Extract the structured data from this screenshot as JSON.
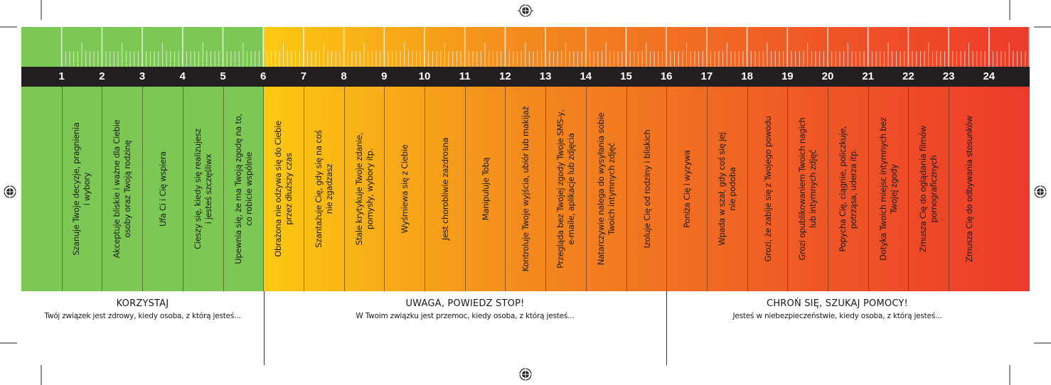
{
  "scale": {
    "numbers": [
      "1",
      "2",
      "3",
      "4",
      "5",
      "6",
      "7",
      "8",
      "9",
      "10",
      "11",
      "12",
      "13",
      "14",
      "15",
      "16",
      "17",
      "18",
      "19",
      "20",
      "21",
      "22",
      "23",
      "24"
    ],
    "colors": {
      "green": "#7dc855",
      "yellow": "#fcc913",
      "orange": "#f38a1e",
      "red_orange": "#ef5a26",
      "red": "#ed3b2a",
      "number_bar": "#231f20"
    }
  },
  "behaviors": [
    "Szanuje Twoje decyzje, pragnienia\ni wybory",
    "Akceptuje bliskie i ważne dla Ciebie\nosoby oraz Twoją rodzinę",
    "Ufa Ci i Cię wspiera",
    "Cieszy się, kiedy się realizujesz\ni jesteś szczęśliwx",
    "Upewnia się, że ma Twoją zgodę na to,\nco robicie wspólnie",
    "Obrażona nie odzywa się do Ciebie\nprzez dłuższy czas",
    "Szantażuje Cię, gdy się na coś\nnie zgadzasz",
    "Stale krytykuje Twoje zdanie,\npomysły, wybory itp.",
    "Wyśmiewa się z Ciebie",
    "Jest chorobliwie zazdrosna",
    "Manipuluje Tobą",
    "Kontroluje Twoje wyjścia, ubiór lub makijaż",
    "Przegląda bez Twojej zgody Twoje SMS-y,\ne-maile, aplikacje lub zdjęcia",
    "Natarczywie nalega do wysyłania sobie\nTwoich intymnych zdjęć",
    "Izoluje Cię od rodziny i bliskich",
    "Poniża Cię i wyzywa",
    "Wpada w szał, gdy coś się jej\nnie podoba",
    "Grozi, że zabije się z Twojego powodu",
    "Grozi opublikowaniem Twoich nagich\nlub intymnych zdjęć",
    "Popycha Cię, ciągnie, policzkuje,\npotrząsa, uderza itp.",
    "Dotyka Twoich miejsc intymnych bez\nTwojej zgody",
    "Zmusza Cię do oglądania filmów\npornograficznych",
    "Zmusza Cię do odbywania stosunków"
  ],
  "zones": [
    {
      "title": "KORZYSTAJ",
      "subtitle": "Twój związek jest zdrowy, kiedy osoba, z którą jesteś..."
    },
    {
      "title": "UWAGA, POWIEDZ STOP!",
      "subtitle": "W Twoim związku jest przemoc, kiedy osoba, z którą jesteś..."
    },
    {
      "title": "CHROŃ SIĘ, SZUKAJ POMOCY!",
      "subtitle": "Jesteś w niebezpieczeństwie, kiedy osoba, z którą jesteś..."
    }
  ]
}
